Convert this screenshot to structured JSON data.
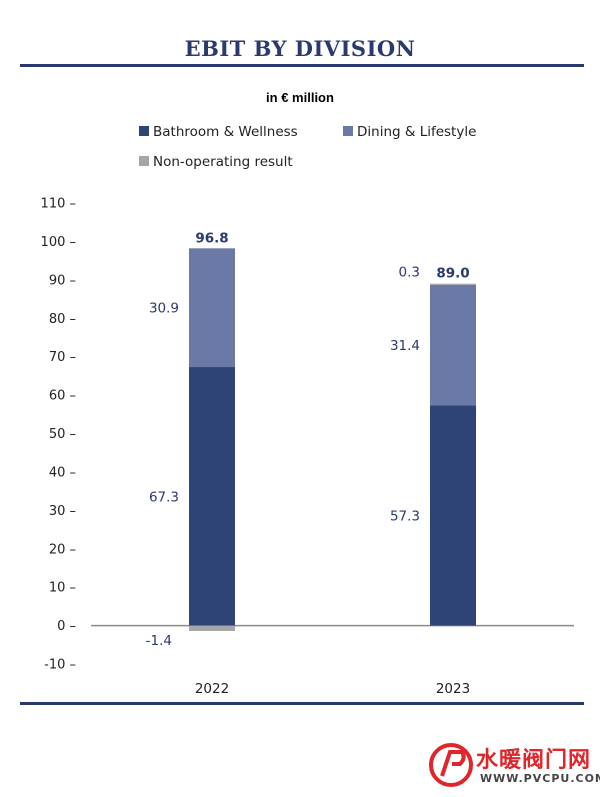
{
  "title": "EBIT BY DIVISION",
  "unit_label": "in € million",
  "colors": {
    "bathroom": "#2e4476",
    "dining": "#6b79a6",
    "nonop": "#a6a6a8",
    "accent": "#2b3a6e"
  },
  "legend": [
    {
      "name": "Bathroom & Wellness",
      "color": "#2e4476"
    },
    {
      "name": "Dining & Lifestyle",
      "color": "#6b79a6"
    },
    {
      "name": "Non-operating result",
      "color": "#a6a6a8"
    }
  ],
  "chart_data": {
    "type": "bar",
    "stacked": true,
    "title": "EBIT BY DIVISION",
    "subtitle": "in € million",
    "categories": [
      "2022",
      "2023"
    ],
    "series": [
      {
        "name": "Bathroom & Wellness",
        "values": [
          67.3,
          57.3
        ],
        "labels": [
          "67.3",
          "57.3"
        ]
      },
      {
        "name": "Dining & Lifestyle",
        "values": [
          30.9,
          31.4
        ],
        "labels": [
          "30.9",
          "31.4"
        ]
      },
      {
        "name": "Non-operating result",
        "values": [
          -1.4,
          0.3
        ],
        "labels": [
          "-1.4",
          "0.3"
        ]
      }
    ],
    "totals": [
      "96.8",
      "89.0"
    ],
    "ylim": [
      -10,
      110
    ],
    "yticks": [
      "-10",
      "0",
      "10",
      "20",
      "30",
      "40",
      "50",
      "60",
      "70",
      "80",
      "90",
      "100",
      "110"
    ],
    "grid": false,
    "legend_position": "top"
  },
  "watermark": {
    "text": "水暖阀门网",
    "url": "WWW.PVCPU.COM"
  }
}
